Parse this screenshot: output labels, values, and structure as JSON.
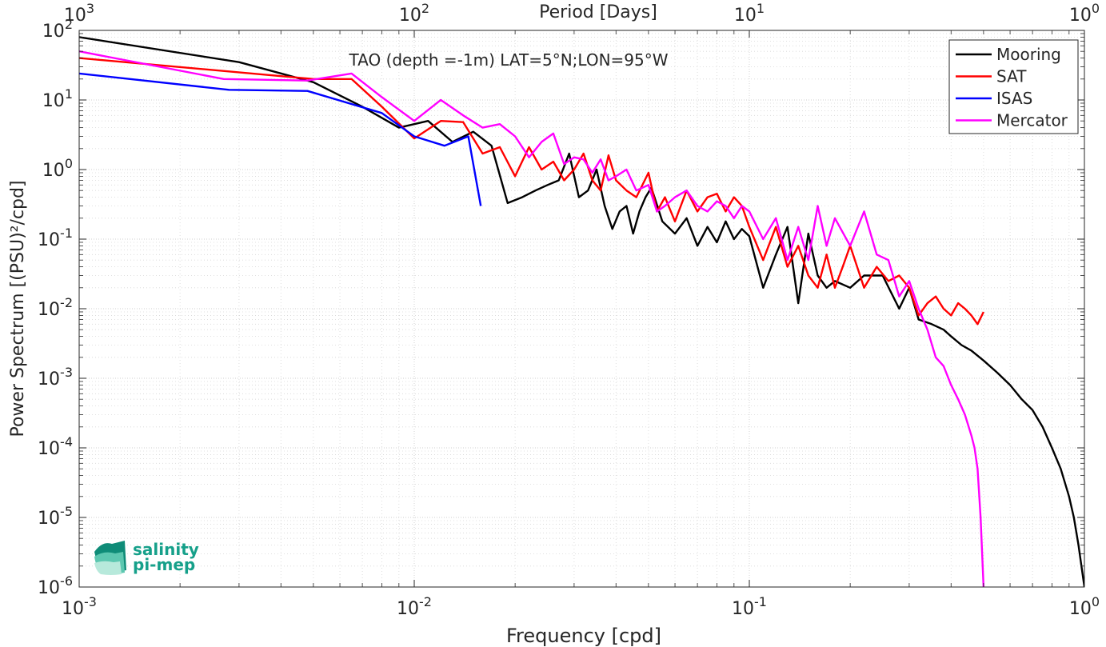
{
  "chart_data": {
    "type": "line",
    "title": "TAO (depth =-1m) LAT=5°N;LON=95°W",
    "xlabel": "Frequency [cpd]",
    "ylabel": "Power Spectrum [(PSU)²/cpd]",
    "top_xlabel": "Period [Days]",
    "xscale": "log",
    "yscale": "log",
    "xlim": [
      0.001,
      1
    ],
    "ylim": [
      1e-06,
      100
    ],
    "grid": true,
    "legend_position": "top-right",
    "x_ticks": [
      {
        "value": 0.001,
        "base": "10",
        "exp": "-3"
      },
      {
        "value": 0.01,
        "base": "10",
        "exp": "-2"
      },
      {
        "value": 0.1,
        "base": "10",
        "exp": "-1"
      },
      {
        "value": 1,
        "base": "10",
        "exp": "0"
      }
    ],
    "top_ticks": [
      {
        "value": 0.001,
        "base": "10",
        "exp": "3"
      },
      {
        "value": 0.01,
        "base": "10",
        "exp": "2"
      },
      {
        "value": 0.1,
        "base": "10",
        "exp": "1"
      },
      {
        "value": 1,
        "base": "10",
        "exp": "0"
      }
    ],
    "y_ticks": [
      {
        "value": 100,
        "base": "10",
        "exp": "2"
      },
      {
        "value": 10,
        "base": "10",
        "exp": "1"
      },
      {
        "value": 1,
        "base": "10",
        "exp": "0"
      },
      {
        "value": 0.1,
        "base": "10",
        "exp": "-1"
      },
      {
        "value": 0.01,
        "base": "10",
        "exp": "-2"
      },
      {
        "value": 0.001,
        "base": "10",
        "exp": "-3"
      },
      {
        "value": 0.0001,
        "base": "10",
        "exp": "-4"
      },
      {
        "value": 1e-05,
        "base": "10",
        "exp": "-5"
      },
      {
        "value": 1e-06,
        "base": "10",
        "exp": "-6"
      }
    ],
    "series": [
      {
        "name": "Mooring",
        "color": "#000000",
        "x": [
          0.001,
          0.003,
          0.005,
          0.007,
          0.009,
          0.011,
          0.013,
          0.015,
          0.017,
          0.019,
          0.021,
          0.023,
          0.025,
          0.027,
          0.029,
          0.031,
          0.033,
          0.035,
          0.037,
          0.039,
          0.041,
          0.043,
          0.045,
          0.047,
          0.049,
          0.051,
          0.055,
          0.06,
          0.065,
          0.07,
          0.075,
          0.08,
          0.085,
          0.09,
          0.095,
          0.1,
          0.11,
          0.12,
          0.13,
          0.14,
          0.15,
          0.16,
          0.17,
          0.18,
          0.2,
          0.22,
          0.25,
          0.28,
          0.3,
          0.32,
          0.35,
          0.38,
          0.4,
          0.43,
          0.46,
          0.5,
          0.55,
          0.6,
          0.65,
          0.7,
          0.75,
          0.8,
          0.85,
          0.9,
          0.93,
          0.96,
          0.98,
          1.0
        ],
        "y": [
          80,
          35,
          18,
          8,
          4,
          5,
          2.5,
          3.5,
          2.2,
          0.33,
          0.4,
          0.5,
          0.6,
          0.7,
          1.7,
          0.4,
          0.5,
          1.0,
          0.3,
          0.14,
          0.25,
          0.3,
          0.12,
          0.25,
          0.4,
          0.55,
          0.18,
          0.12,
          0.2,
          0.08,
          0.15,
          0.09,
          0.18,
          0.1,
          0.14,
          0.11,
          0.02,
          0.06,
          0.15,
          0.012,
          0.12,
          0.03,
          0.02,
          0.025,
          0.02,
          0.03,
          0.03,
          0.01,
          0.02,
          0.007,
          0.006,
          0.005,
          0.004,
          0.003,
          0.0025,
          0.0018,
          0.0012,
          0.0008,
          0.0005,
          0.00035,
          0.0002,
          0.0001,
          5e-05,
          2e-05,
          1e-05,
          4e-06,
          2e-06,
          1e-06
        ]
      },
      {
        "name": "SAT",
        "color": "#ff0000",
        "x": [
          0.001,
          0.005,
          0.0065,
          0.008,
          0.01,
          0.012,
          0.014,
          0.016,
          0.018,
          0.02,
          0.022,
          0.024,
          0.026,
          0.028,
          0.03,
          0.032,
          0.034,
          0.036,
          0.038,
          0.04,
          0.043,
          0.046,
          0.05,
          0.053,
          0.056,
          0.06,
          0.065,
          0.07,
          0.075,
          0.08,
          0.085,
          0.09,
          0.095,
          0.1,
          0.11,
          0.12,
          0.13,
          0.14,
          0.15,
          0.16,
          0.17,
          0.18,
          0.19,
          0.2,
          0.22,
          0.24,
          0.26,
          0.28,
          0.3,
          0.32,
          0.34,
          0.36,
          0.38,
          0.4,
          0.42,
          0.44,
          0.46,
          0.48,
          0.5
        ],
        "y": [
          40,
          20,
          20,
          8,
          2.8,
          5,
          4.8,
          1.7,
          2.1,
          0.8,
          2.1,
          1.0,
          1.3,
          0.7,
          1.0,
          1.7,
          0.7,
          0.5,
          1.6,
          0.7,
          0.5,
          0.4,
          0.9,
          0.25,
          0.4,
          0.18,
          0.5,
          0.25,
          0.4,
          0.45,
          0.25,
          0.4,
          0.3,
          0.15,
          0.05,
          0.15,
          0.04,
          0.08,
          0.03,
          0.02,
          0.06,
          0.02,
          0.04,
          0.08,
          0.02,
          0.04,
          0.025,
          0.03,
          0.02,
          0.008,
          0.012,
          0.015,
          0.01,
          0.008,
          0.012,
          0.01,
          0.008,
          0.006,
          0.009
        ]
      },
      {
        "name": "ISAS",
        "color": "#0000ff",
        "x": [
          0.001,
          0.0028,
          0.0048,
          0.008,
          0.01,
          0.0123,
          0.0145,
          0.0158
        ],
        "y": [
          24,
          14,
          13.5,
          6.5,
          3.0,
          2.2,
          3.0,
          0.3
        ]
      },
      {
        "name": "Mercator",
        "color": "#ff00ff",
        "x": [
          0.001,
          0.0027,
          0.0048,
          0.0065,
          0.008,
          0.01,
          0.012,
          0.014,
          0.016,
          0.018,
          0.02,
          0.022,
          0.024,
          0.026,
          0.028,
          0.03,
          0.032,
          0.034,
          0.036,
          0.038,
          0.04,
          0.043,
          0.046,
          0.05,
          0.053,
          0.056,
          0.06,
          0.065,
          0.07,
          0.075,
          0.08,
          0.085,
          0.09,
          0.095,
          0.1,
          0.11,
          0.12,
          0.13,
          0.14,
          0.15,
          0.16,
          0.17,
          0.18,
          0.2,
          0.22,
          0.24,
          0.26,
          0.28,
          0.3,
          0.32,
          0.34,
          0.36,
          0.38,
          0.4,
          0.42,
          0.44,
          0.46,
          0.47,
          0.48,
          0.49,
          0.5
        ],
        "y": [
          50,
          20,
          19,
          24,
          11,
          5,
          10,
          6,
          4,
          4.5,
          3,
          1.5,
          2.5,
          3.3,
          1.2,
          1.5,
          1.4,
          0.9,
          1.4,
          0.7,
          0.8,
          1.0,
          0.5,
          0.6,
          0.25,
          0.3,
          0.4,
          0.5,
          0.3,
          0.25,
          0.35,
          0.3,
          0.2,
          0.3,
          0.25,
          0.1,
          0.2,
          0.05,
          0.15,
          0.05,
          0.3,
          0.08,
          0.2,
          0.08,
          0.25,
          0.06,
          0.05,
          0.015,
          0.025,
          0.01,
          0.005,
          0.002,
          0.0015,
          0.0008,
          0.0005,
          0.0003,
          0.00015,
          0.0001,
          5e-05,
          1e-05,
          1e-06
        ]
      }
    ]
  },
  "logo": {
    "line1": "salinity",
    "line2": "pi-mep",
    "color": "#16a08a"
  }
}
